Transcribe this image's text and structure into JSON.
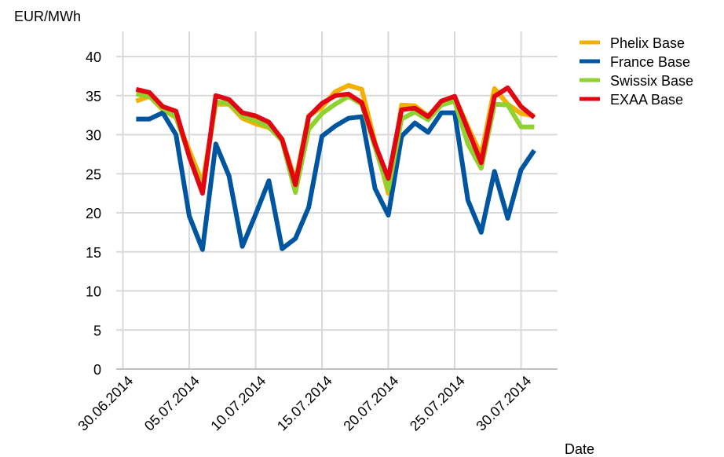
{
  "chart_data": {
    "type": "line",
    "title": "",
    "ylabel": "EUR/MWh",
    "xlabel": "Date",
    "ylim": [
      0,
      40
    ],
    "y_ticks": [
      "0",
      "5",
      "10",
      "15",
      "20",
      "25",
      "30",
      "35",
      "40"
    ],
    "x_range": [
      "2014-06-30",
      "2014-08-01"
    ],
    "x_ticks": [
      {
        "date": "2014-06-30",
        "label": "30.06.2014"
      },
      {
        "date": "2014-07-05",
        "label": "05.07.2014"
      },
      {
        "date": "2014-07-10",
        "label": "10.07.2014"
      },
      {
        "date": "2014-07-15",
        "label": "15.07.2014"
      },
      {
        "date": "2014-07-20",
        "label": "20.07.2014"
      },
      {
        "date": "2014-07-25",
        "label": "25.07.2014"
      },
      {
        "date": "2014-07-30",
        "label": "30.07.2014"
      }
    ],
    "grid": true,
    "legend_position": "top-right",
    "x": [
      "2014-07-01",
      "2014-07-02",
      "2014-07-03",
      "2014-07-04",
      "2014-07-05",
      "2014-07-06",
      "2014-07-07",
      "2014-07-08",
      "2014-07-09",
      "2014-07-10",
      "2014-07-11",
      "2014-07-12",
      "2014-07-13",
      "2014-07-14",
      "2014-07-15",
      "2014-07-16",
      "2014-07-17",
      "2014-07-18",
      "2014-07-19",
      "2014-07-20",
      "2014-07-21",
      "2014-07-22",
      "2014-07-23",
      "2014-07-24",
      "2014-07-25",
      "2014-07-26",
      "2014-07-27",
      "2014-07-28",
      "2014-07-29",
      "2014-07-30",
      "2014-07-31"
    ],
    "series": [
      {
        "name": "Phelix Base",
        "color": "#F2B100",
        "values": [
          34.3,
          34.9,
          33.2,
          32.2,
          28.0,
          23.8,
          33.9,
          33.9,
          32.1,
          31.4,
          30.9,
          29.4,
          24.1,
          32.4,
          33.5,
          35.5,
          36.3,
          35.8,
          29.0,
          22.5,
          33.8,
          33.7,
          32.4,
          34.0,
          34.8,
          31.0,
          27.4,
          35.9,
          33.9,
          32.7,
          32.4
        ]
      },
      {
        "name": "France Base",
        "color": "#0055A0",
        "values": [
          32.0,
          32.0,
          32.8,
          30.0,
          19.6,
          15.3,
          28.8,
          24.7,
          15.7,
          19.8,
          24.1,
          15.4,
          16.7,
          20.7,
          29.8,
          31.1,
          32.1,
          32.3,
          23.1,
          19.7,
          29.8,
          31.5,
          30.3,
          32.8,
          32.8,
          21.6,
          17.5,
          25.3,
          19.3,
          25.5,
          28.0
        ]
      },
      {
        "name": "Swissix Base",
        "color": "#8FD12E",
        "values": [
          35.2,
          34.9,
          33.4,
          32.2,
          27.4,
          22.9,
          34.2,
          34.0,
          32.4,
          31.8,
          31.0,
          29.2,
          22.6,
          30.7,
          32.7,
          33.9,
          34.9,
          33.9,
          28.4,
          23.0,
          32.0,
          32.9,
          31.9,
          33.8,
          34.3,
          28.8,
          25.7,
          33.9,
          33.8,
          31.0,
          31.0
        ]
      },
      {
        "name": "EXAA Base",
        "color": "#E20613",
        "values": [
          35.8,
          35.4,
          33.6,
          33.0,
          27.2,
          22.5,
          35.0,
          34.5,
          32.8,
          32.4,
          31.6,
          29.4,
          23.6,
          32.3,
          34.0,
          35.0,
          35.2,
          34.1,
          28.8,
          24.4,
          33.2,
          33.4,
          32.3,
          34.3,
          34.9,
          30.6,
          26.4,
          34.9,
          36.0,
          33.6,
          32.2
        ]
      }
    ]
  }
}
